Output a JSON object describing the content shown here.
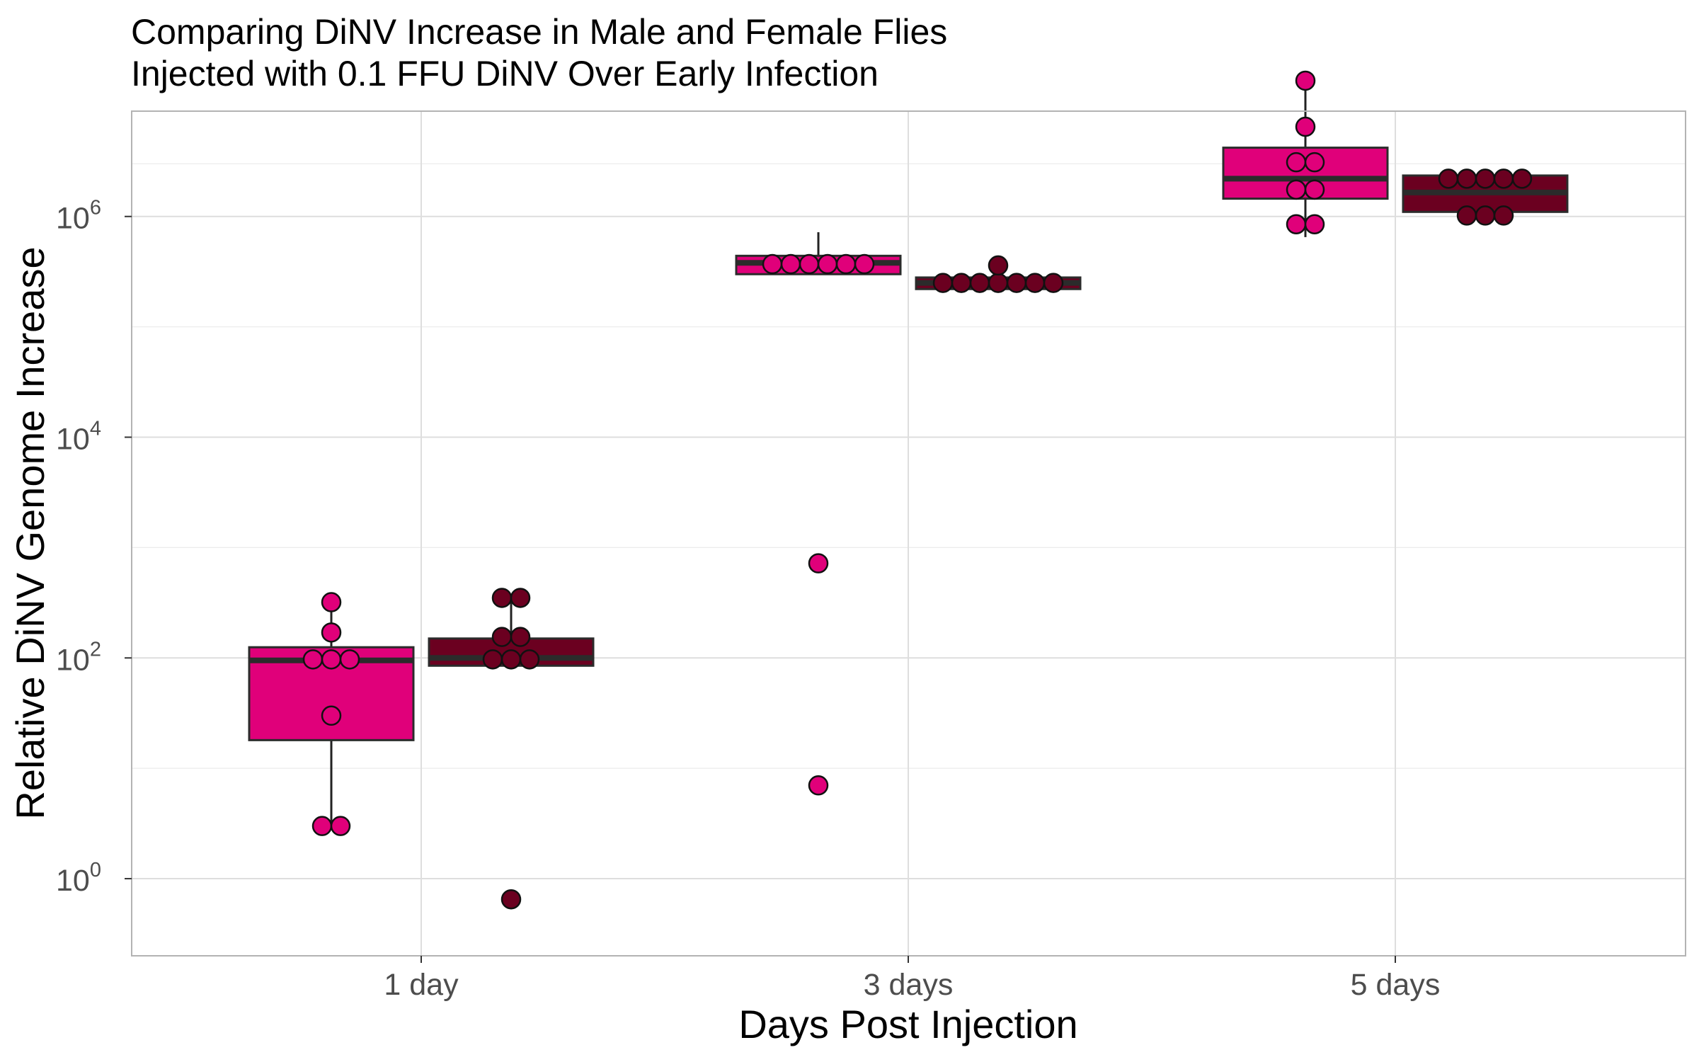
{
  "chart_data": {
    "type": "box",
    "title_line1": "Comparing DiNV Increase in Male and Female Flies",
    "title_line2": "Injected with 0.1 FFU DiNV Over Early Infection",
    "xlabel": "Days Post Injection",
    "ylabel": "Relative DiNV Genome Increase",
    "y_scale": "log10",
    "ylim": [
      0.2,
      9000000
    ],
    "y_ticks": [
      {
        "value": 1,
        "base": "10",
        "exp": "0"
      },
      {
        "value": 100,
        "base": "10",
        "exp": "2"
      },
      {
        "value": 10000,
        "base": "10",
        "exp": "4"
      },
      {
        "value": 1000000,
        "base": "10",
        "exp": "6"
      }
    ],
    "categories": [
      "1 day",
      "3 days",
      "5 days"
    ],
    "grid": true,
    "legend": "none",
    "series": [
      {
        "color": "#e0007a",
        "boxes": [
          {
            "q1": 18,
            "median": 95,
            "q3": 125,
            "whisker_low": 3,
            "whisker_high": 320
          },
          {
            "q1": 300000,
            "median": 380000,
            "q3": 440000,
            "whisker_low": 300000,
            "whisker_high": 720000
          },
          {
            "q1": 1450000,
            "median": 2200000,
            "q3": 4200000,
            "whisker_low": 650000,
            "whisker_high": 17000000
          }
        ],
        "points": [
          [
            320,
            170,
            97,
            97,
            97,
            30,
            3,
            3
          ],
          [
            720,
            7,
            370000,
            370000,
            370000,
            370000,
            370000,
            370000
          ],
          [
            17000000,
            6500000,
            3100000,
            3100000,
            1750000,
            1750000,
            850000,
            850000
          ]
        ]
      },
      {
        "color": "#6b0020",
        "boxes": [
          {
            "q1": 85,
            "median": 100,
            "q3": 150,
            "whisker_low": 80,
            "whisker_high": 350
          },
          {
            "q1": 220000,
            "median": 250000,
            "q3": 280000,
            "whisker_low": 220000,
            "whisker_high": 360000
          },
          {
            "q1": 1100000,
            "median": 1650000,
            "q3": 2350000,
            "whisker_low": 1000000,
            "whisker_high": 2350000
          }
        ],
        "points": [
          [
            350,
            350,
            155,
            155,
            97,
            97,
            97,
            0.65
          ],
          [
            360000,
            250000,
            250000,
            250000,
            250000,
            250000,
            250000,
            250000
          ],
          [
            2200000,
            2200000,
            2200000,
            2200000,
            2200000,
            1020000,
            1020000,
            1020000
          ]
        ]
      }
    ]
  }
}
